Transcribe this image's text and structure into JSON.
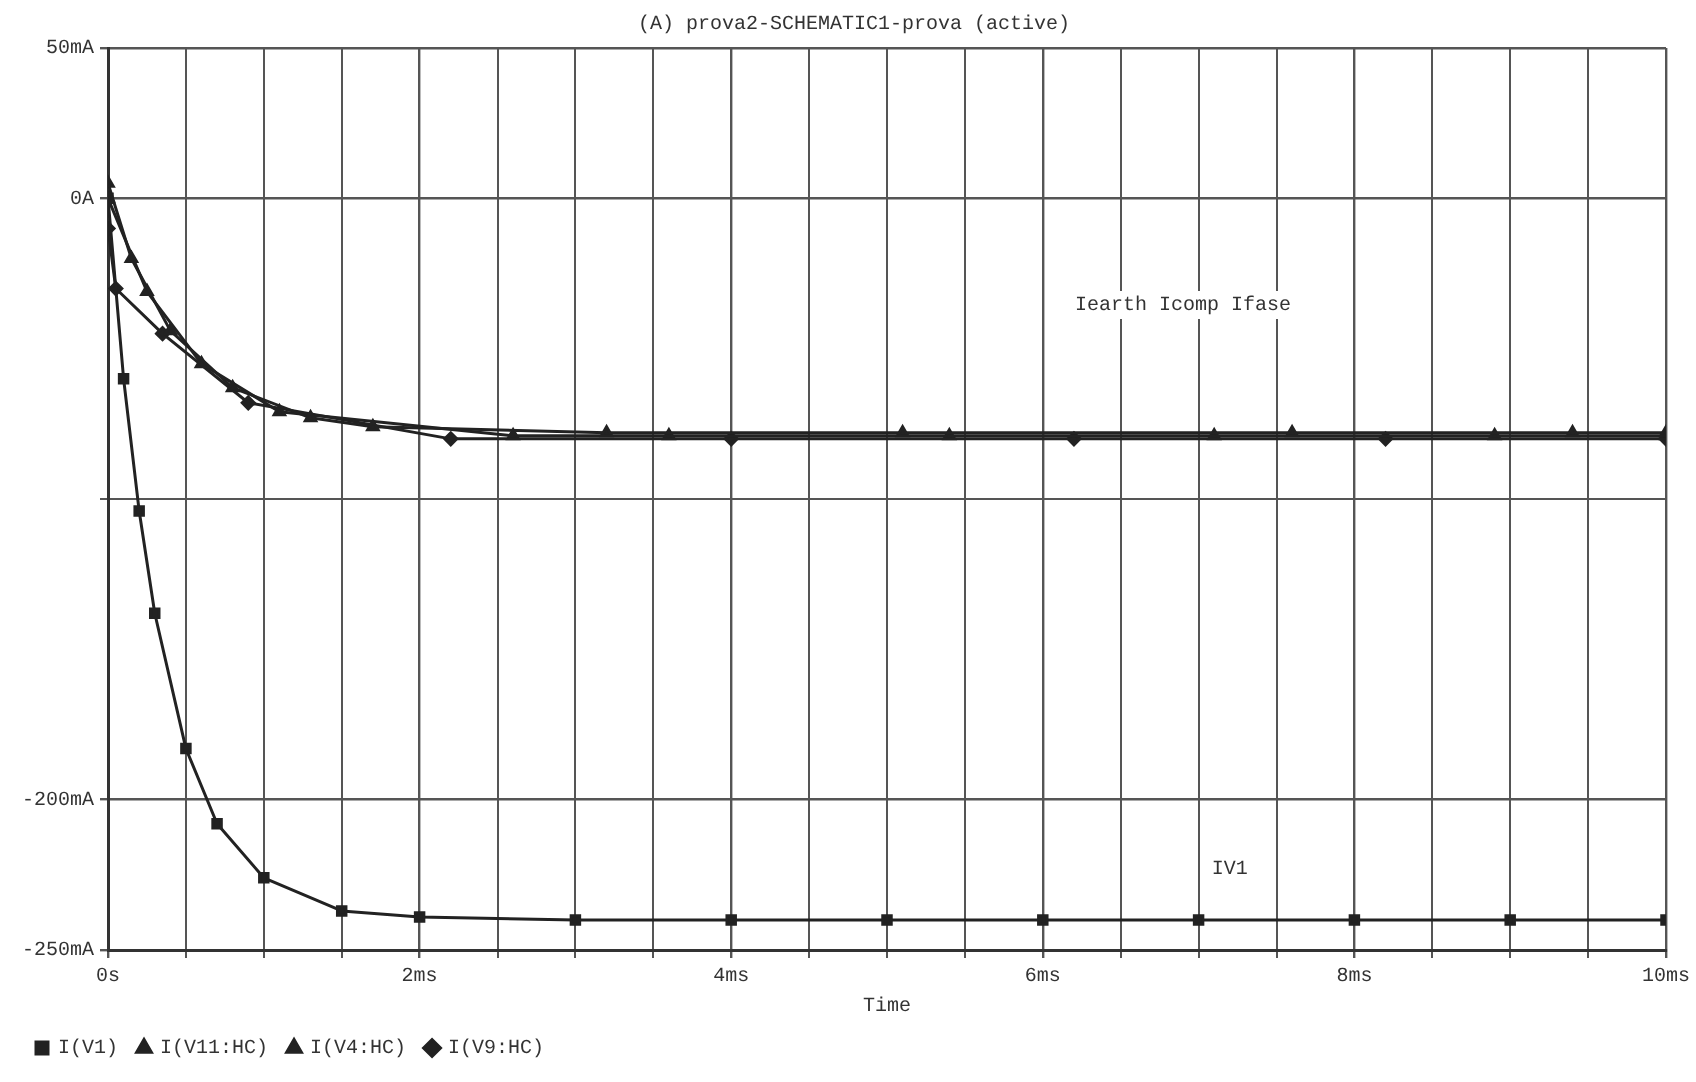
{
  "chart_data": {
    "type": "line",
    "title": "(A) prova2-SCHEMATIC1-prova (active)",
    "xlabel": "Time",
    "x": [
      0,
      0.1,
      0.2,
      0.3,
      0.5,
      0.7,
      1,
      1.5,
      2,
      3,
      4,
      5,
      6,
      7,
      8,
      9,
      10
    ],
    "series": [
      {
        "name": "I(V1)",
        "color": "#222222",
        "marker": "square",
        "values": [
          0,
          -60,
          -104,
          -138,
          -183,
          -208,
          -226,
          -237,
          -239,
          -240,
          -240,
          -240,
          -240,
          -240,
          -240,
          -240,
          -240
        ]
      },
      {
        "name": "I(V11:HC)",
        "color": "#222222",
        "marker": "triangle",
        "x": [
          0,
          0.15,
          0.4,
          0.8,
          1.3,
          1.7,
          3.2,
          5.1,
          7.6,
          9.4,
          10
        ],
        "values": [
          5,
          -20,
          -44,
          -63,
          -73,
          -76,
          -78,
          -78,
          -78,
          -78,
          -78
        ]
      },
      {
        "name": "I(V4:HC)",
        "color": "#222222",
        "marker": "triangle",
        "x": [
          0,
          0.25,
          0.6,
          1.1,
          2.6,
          3.6,
          5.4,
          7.1,
          8.9,
          10
        ],
        "values": [
          0,
          -31,
          -55,
          -71,
          -79,
          -79,
          -79,
          -79,
          -79,
          -79
        ]
      },
      {
        "name": "I(V9:HC)",
        "color": "#222222",
        "marker": "diamond",
        "x": [
          0,
          0.05,
          0.35,
          0.9,
          2.2,
          4.0,
          6.2,
          8.2,
          10
        ],
        "values": [
          -10,
          -30,
          -45,
          -68,
          -80,
          -80,
          -80,
          -80,
          -80
        ]
      }
    ],
    "xlim": [
      0,
      10
    ],
    "xticks": [
      {
        "value": 0,
        "label": "0s"
      },
      {
        "value": 0.5,
        "label": null
      },
      {
        "value": 1,
        "label": null
      },
      {
        "value": 1.5,
        "label": null
      },
      {
        "value": 2,
        "label": "2ms"
      },
      {
        "value": 2.5,
        "label": null
      },
      {
        "value": 3,
        "label": null
      },
      {
        "value": 3.5,
        "label": null
      },
      {
        "value": 4,
        "label": "4ms"
      },
      {
        "value": 4.5,
        "label": null
      },
      {
        "value": 5,
        "label": null
      },
      {
        "value": 5.5,
        "label": null
      },
      {
        "value": 6,
        "label": "6ms"
      },
      {
        "value": 6.5,
        "label": null
      },
      {
        "value": 7,
        "label": null
      },
      {
        "value": 7.5,
        "label": null
      },
      {
        "value": 8,
        "label": "8ms"
      },
      {
        "value": 8.5,
        "label": null
      },
      {
        "value": 9,
        "label": null
      },
      {
        "value": 9.5,
        "label": null
      },
      {
        "value": 10,
        "label": "10ms"
      }
    ],
    "ylim": [
      -250,
      50
    ],
    "yticks": [
      {
        "value": 50,
        "label": "50mA"
      },
      {
        "value": 0,
        "label": "0A"
      },
      {
        "value": -100,
        "label": null
      },
      {
        "value": -200,
        "label": "-200mA"
      },
      {
        "value": -250,
        "label": "-250mA"
      }
    ],
    "grid": true,
    "legend": "bottom left",
    "line_style": "solid",
    "annotations": [
      "Iearth Icomp Ifase",
      "IV1"
    ]
  }
}
